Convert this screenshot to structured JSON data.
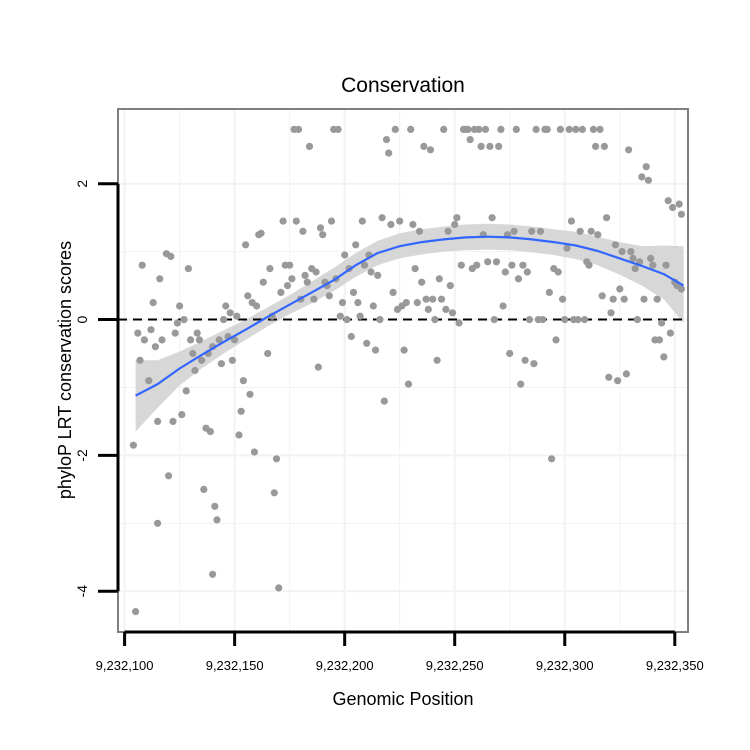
{
  "chart_data": {
    "type": "scatter",
    "title": "Conservation",
    "xlabel": "Genomic Position",
    "ylabel": "phyloP LRT conservation scores",
    "xlim": [
      9232097,
      9232356
    ],
    "ylim": [
      -4.6,
      3.1
    ],
    "x_ticks": [
      9232100,
      9232150,
      9232200,
      9232250,
      9232300,
      9232350
    ],
    "x_tick_labels": [
      "9,232,100",
      "9,232,150",
      "9,232,200",
      "9,232,250",
      "9,232,300",
      "9,232,350"
    ],
    "y_ticks": [
      -4,
      -2,
      0,
      2
    ],
    "y_tick_labels": [
      "-4",
      "-2",
      "0",
      "2"
    ],
    "reference_line": {
      "y": 0,
      "style": "dashed",
      "color": "#000000"
    },
    "grid": true,
    "colors": {
      "points": "#999999",
      "smooth": "#3366FF",
      "ribbon": "#D3D3D3",
      "panel_border": "#7F7F7F",
      "grid": "#F2F2F2"
    },
    "series": [
      {
        "name": "scores",
        "kind": "points",
        "points": [
          [
            9232104,
            -1.85
          ],
          [
            9232105,
            -4.3
          ],
          [
            9232106,
            -0.2
          ],
          [
            9232107,
            -0.6
          ],
          [
            9232108,
            0.8
          ],
          [
            9232109,
            -0.3
          ],
          [
            9232111,
            -0.9
          ],
          [
            9232112,
            -0.15
          ],
          [
            9232113,
            0.25
          ],
          [
            9232114,
            -0.4
          ],
          [
            9232115,
            -1.5
          ],
          [
            9232115,
            -3.0
          ],
          [
            9232116,
            0.6
          ],
          [
            9232117,
            -0.3
          ],
          [
            9232119,
            0.97
          ],
          [
            9232120,
            -2.3
          ],
          [
            9232121,
            0.93
          ],
          [
            9232122,
            -1.5
          ],
          [
            9232123,
            -0.2
          ],
          [
            9232124,
            -0.05
          ],
          [
            9232125,
            0.2
          ],
          [
            9232126,
            -1.4
          ],
          [
            9232127,
            0.0
          ],
          [
            9232128,
            -1.05
          ],
          [
            9232129,
            0.75
          ],
          [
            9232130,
            -0.3
          ],
          [
            9232131,
            -0.5
          ],
          [
            9232132,
            -0.75
          ],
          [
            9232133,
            -0.2
          ],
          [
            9232134,
            -0.3
          ],
          [
            9232135,
            -0.6
          ],
          [
            9232136,
            -2.5
          ],
          [
            9232137,
            -1.6
          ],
          [
            9232138,
            -0.5
          ],
          [
            9232139,
            -1.65
          ],
          [
            9232140,
            -3.75
          ],
          [
            9232140,
            -0.4
          ],
          [
            9232141,
            -2.75
          ],
          [
            9232142,
            -2.95
          ],
          [
            9232143,
            -0.3
          ],
          [
            9232144,
            -0.65
          ],
          [
            9232145,
            0.0
          ],
          [
            9232146,
            0.2
          ],
          [
            9232147,
            -0.25
          ],
          [
            9232148,
            0.1
          ],
          [
            9232149,
            -0.6
          ],
          [
            9232150,
            -0.3
          ],
          [
            9232151,
            0.05
          ],
          [
            9232152,
            -1.7
          ],
          [
            9232153,
            -1.35
          ],
          [
            9232154,
            -0.9
          ],
          [
            9232155,
            1.1
          ],
          [
            9232156,
            0.35
          ],
          [
            9232157,
            -1.1
          ],
          [
            9232158,
            0.25
          ],
          [
            9232159,
            -1.95
          ],
          [
            9232160,
            0.2
          ],
          [
            9232161,
            1.25
          ],
          [
            9232162,
            1.27
          ],
          [
            9232163,
            0.55
          ],
          [
            9232165,
            -0.5
          ],
          [
            9232166,
            0.75
          ],
          [
            9232167,
            0.05
          ],
          [
            9232168,
            -2.55
          ],
          [
            9232169,
            -2.05
          ],
          [
            9232170,
            -3.95
          ],
          [
            9232171,
            0.4
          ],
          [
            9232172,
            1.45
          ],
          [
            9232173,
            0.8
          ],
          [
            9232174,
            0.5
          ],
          [
            9232175,
            0.8
          ],
          [
            9232176,
            0.6
          ],
          [
            9232177,
            2.8
          ],
          [
            9232178,
            1.45
          ],
          [
            9232179,
            2.8
          ],
          [
            9232180,
            0.3
          ],
          [
            9232181,
            1.3
          ],
          [
            9232182,
            0.65
          ],
          [
            9232183,
            0.55
          ],
          [
            9232184,
            2.55
          ],
          [
            9232185,
            0.75
          ],
          [
            9232186,
            0.3
          ],
          [
            9232187,
            0.7
          ],
          [
            9232188,
            -0.7
          ],
          [
            9232189,
            1.35
          ],
          [
            9232190,
            1.25
          ],
          [
            9232191,
            0.55
          ],
          [
            9232192,
            0.5
          ],
          [
            9232193,
            0.35
          ],
          [
            9232194,
            1.45
          ],
          [
            9232195,
            2.8
          ],
          [
            9232196,
            0.6
          ],
          [
            9232197,
            2.8
          ],
          [
            9232198,
            0.05
          ],
          [
            9232199,
            0.25
          ],
          [
            9232200,
            0.95
          ],
          [
            9232201,
            0.0
          ],
          [
            9232202,
            0.75
          ],
          [
            9232203,
            -0.25
          ],
          [
            9232204,
            0.4
          ],
          [
            9232205,
            1.1
          ],
          [
            9232206,
            0.25
          ],
          [
            9232207,
            0.05
          ],
          [
            9232208,
            1.45
          ],
          [
            9232209,
            0.8
          ],
          [
            9232210,
            -0.35
          ],
          [
            9232211,
            0.95
          ],
          [
            9232212,
            0.7
          ],
          [
            9232213,
            0.2
          ],
          [
            9232214,
            -0.45
          ],
          [
            9232215,
            0.65
          ],
          [
            9232216,
            0.0
          ],
          [
            9232217,
            1.5
          ],
          [
            9232218,
            -1.2
          ],
          [
            9232219,
            2.65
          ],
          [
            9232220,
            2.45
          ],
          [
            9232221,
            1.4
          ],
          [
            9232222,
            0.4
          ],
          [
            9232223,
            2.8
          ],
          [
            9232224,
            0.15
          ],
          [
            9232225,
            1.45
          ],
          [
            9232226,
            0.2
          ],
          [
            9232227,
            -0.45
          ],
          [
            9232228,
            0.25
          ],
          [
            9232229,
            -0.95
          ],
          [
            9232230,
            2.8
          ],
          [
            9232231,
            1.4
          ],
          [
            9232232,
            0.75
          ],
          [
            9232233,
            0.25
          ],
          [
            9232234,
            1.3
          ],
          [
            9232235,
            0.55
          ],
          [
            9232236,
            2.55
          ],
          [
            9232237,
            0.3
          ],
          [
            9232238,
            0.15
          ],
          [
            9232239,
            2.5
          ],
          [
            9232240,
            0.3
          ],
          [
            9232241,
            0.0
          ],
          [
            9232242,
            -0.6
          ],
          [
            9232243,
            0.6
          ],
          [
            9232244,
            0.3
          ],
          [
            9232245,
            2.8
          ],
          [
            9232246,
            0.15
          ],
          [
            9232247,
            1.3
          ],
          [
            9232248,
            0.5
          ],
          [
            9232249,
            0.1
          ],
          [
            9232250,
            1.4
          ],
          [
            9232251,
            1.5
          ],
          [
            9232252,
            -0.05
          ],
          [
            9232253,
            0.8
          ],
          [
            9232254,
            2.8
          ],
          [
            9232255,
            2.8
          ],
          [
            9232256,
            2.8
          ],
          [
            9232257,
            2.65
          ],
          [
            9232258,
            0.75
          ],
          [
            9232259,
            2.8
          ],
          [
            9232260,
            0.8
          ],
          [
            9232261,
            2.8
          ],
          [
            9232262,
            2.55
          ],
          [
            9232263,
            1.25
          ],
          [
            9232264,
            2.8
          ],
          [
            9232265,
            0.85
          ],
          [
            9232266,
            2.55
          ],
          [
            9232267,
            1.5
          ],
          [
            9232268,
            0.0
          ],
          [
            9232269,
            0.85
          ],
          [
            9232270,
            2.55
          ],
          [
            9232271,
            2.8
          ],
          [
            9232272,
            0.2
          ],
          [
            9232273,
            0.7
          ],
          [
            9232274,
            1.25
          ],
          [
            9232275,
            -0.5
          ],
          [
            9232276,
            0.8
          ],
          [
            9232277,
            1.3
          ],
          [
            9232278,
            2.8
          ],
          [
            9232279,
            0.6
          ],
          [
            9232280,
            -0.95
          ],
          [
            9232281,
            0.8
          ],
          [
            9232282,
            -0.6
          ],
          [
            9232283,
            0.7
          ],
          [
            9232284,
            0.0
          ],
          [
            9232285,
            1.3
          ],
          [
            9232286,
            -0.65
          ],
          [
            9232287,
            2.8
          ],
          [
            9232288,
            0.0
          ],
          [
            9232289,
            1.3
          ],
          [
            9232290,
            0.0
          ],
          [
            9232291,
            2.8
          ],
          [
            9232292,
            2.8
          ],
          [
            9232293,
            0.4
          ],
          [
            9232294,
            -2.05
          ],
          [
            9232295,
            0.75
          ],
          [
            9232296,
            -0.3
          ],
          [
            9232297,
            0.7
          ],
          [
            9232298,
            2.8
          ],
          [
            9232299,
            0.3
          ],
          [
            9232300,
            0.0
          ],
          [
            9232301,
            1.05
          ],
          [
            9232302,
            2.8
          ],
          [
            9232303,
            1.45
          ],
          [
            9232304,
            0.0
          ],
          [
            9232305,
            2.8
          ],
          [
            9232306,
            0.0
          ],
          [
            9232307,
            1.3
          ],
          [
            9232308,
            2.8
          ],
          [
            9232309,
            0.0
          ],
          [
            9232310,
            0.85
          ],
          [
            9232311,
            0.8
          ],
          [
            9232312,
            1.3
          ],
          [
            9232313,
            2.8
          ],
          [
            9232314,
            2.55
          ],
          [
            9232315,
            1.25
          ],
          [
            9232316,
            2.8
          ],
          [
            9232317,
            0.35
          ],
          [
            9232318,
            2.55
          ],
          [
            9232319,
            1.5
          ],
          [
            9232320,
            -0.85
          ],
          [
            9232321,
            0.1
          ],
          [
            9232322,
            0.3
          ],
          [
            9232323,
            1.1
          ],
          [
            9232324,
            -0.9
          ],
          [
            9232325,
            0.45
          ],
          [
            9232326,
            1.0
          ],
          [
            9232327,
            0.3
          ],
          [
            9232328,
            -0.8
          ],
          [
            9232329,
            2.5
          ],
          [
            9232330,
            1.0
          ],
          [
            9232331,
            0.9
          ],
          [
            9232332,
            0.75
          ],
          [
            9232333,
            0.0
          ],
          [
            9232334,
            0.85
          ],
          [
            9232335,
            2.1
          ],
          [
            9232336,
            0.3
          ],
          [
            9232337,
            2.25
          ],
          [
            9232338,
            2.05
          ],
          [
            9232339,
            0.9
          ],
          [
            9232340,
            0.8
          ],
          [
            9232341,
            -0.3
          ],
          [
            9232342,
            0.3
          ],
          [
            9232343,
            -0.3
          ],
          [
            9232344,
            -0.05
          ],
          [
            9232345,
            -0.55
          ],
          [
            9232346,
            0.8
          ],
          [
            9232347,
            1.75
          ],
          [
            9232348,
            -0.2
          ],
          [
            9232349,
            1.65
          ],
          [
            9232350,
            0.55
          ],
          [
            9232351,
            0.5
          ],
          [
            9232352,
            1.7
          ],
          [
            9232353,
            1.55
          ],
          [
            9232353,
            0.45
          ]
        ]
      },
      {
        "name": "smooth fit",
        "kind": "line",
        "x": [
          9232105,
          9232115,
          9232125,
          9232135,
          9232145,
          9232155,
          9232165,
          9232175,
          9232185,
          9232195,
          9232205,
          9232215,
          9232225,
          9232235,
          9232245,
          9232255,
          9232265,
          9232275,
          9232285,
          9232295,
          9232305,
          9232315,
          9232325,
          9232335,
          9232345,
          9232354
        ],
        "y": [
          -1.12,
          -0.95,
          -0.72,
          -0.52,
          -0.33,
          -0.15,
          0.04,
          0.22,
          0.4,
          0.58,
          0.8,
          0.98,
          1.08,
          1.14,
          1.18,
          1.21,
          1.22,
          1.21,
          1.18,
          1.14,
          1.09,
          1.01,
          0.9,
          0.79,
          0.67,
          0.5
        ],
        "lower": [
          -1.65,
          -1.3,
          -0.97,
          -0.72,
          -0.5,
          -0.3,
          -0.1,
          0.08,
          0.24,
          0.42,
          0.63,
          0.8,
          0.9,
          0.96,
          1.0,
          1.02,
          1.03,
          1.02,
          0.99,
          0.95,
          0.89,
          0.8,
          0.66,
          0.5,
          0.3,
          -0.05
        ],
        "upper": [
          -0.6,
          -0.6,
          -0.47,
          -0.32,
          -0.16,
          0.0,
          0.18,
          0.36,
          0.56,
          0.76,
          0.98,
          1.16,
          1.27,
          1.33,
          1.37,
          1.4,
          1.41,
          1.4,
          1.37,
          1.33,
          1.29,
          1.22,
          1.14,
          1.08,
          1.09,
          1.08
        ]
      }
    ]
  }
}
